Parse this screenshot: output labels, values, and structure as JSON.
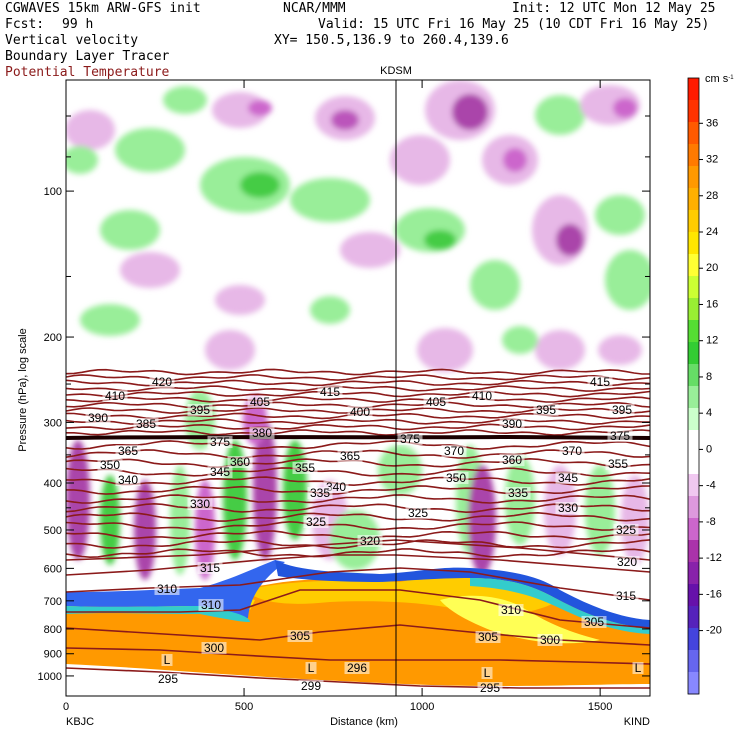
{
  "header": {
    "model": "CGWAVES 15km ARW-GFS init",
    "org": "NCAR/MMM",
    "init": "Init: 12 UTC Mon 12 May 25",
    "fcst_label": "Fcst:",
    "fcst_value": "99 h",
    "valid": "Valid: 15 UTC Fri 16 May 25 (10 CDT Fri 16 May 25)",
    "field1": "Vertical velocity",
    "field2": "Boundary Layer Tracer",
    "field3": "Potential Temperature",
    "xy": "XY= 150.5,136.9 to 260.4,139.6"
  },
  "colors": {
    "theta_contour": "#8b1a1a",
    "terrain": "#ffffff"
  },
  "chart_data": {
    "type": "heatmap",
    "xlabel": "Distance (km)",
    "ylabel": "Pressure (hPa), log scale",
    "x_ticks": [
      "0",
      "500",
      "1000",
      "1500"
    ],
    "x_tick_values": [
      0,
      500,
      1000,
      1500
    ],
    "xlim": [
      0,
      1640
    ],
    "y_ticks": [
      "100",
      "200",
      "300",
      "400",
      "500",
      "600",
      "700",
      "800",
      "900",
      "1000"
    ],
    "y_tick_values": [
      100,
      200,
      300,
      400,
      500,
      600,
      700,
      800,
      900,
      1000
    ],
    "y_scale": "log",
    "station_left": "KBJC",
    "station_right": "KIND",
    "station_mid": "KDSM",
    "station_mid_x": 940,
    "colorbar": {
      "unit": "cm s",
      "unit_exp": "-1",
      "labels": [
        "36",
        "32",
        "28",
        "24",
        "20",
        "16",
        "12",
        "8",
        "4",
        "0",
        "-4",
        "-8",
        "-12",
        "-16",
        "-20"
      ],
      "values": [
        36,
        32,
        28,
        24,
        20,
        16,
        12,
        8,
        4,
        0,
        -4,
        -8,
        -12,
        -16,
        -20
      ],
      "colors": [
        "#ff1a00",
        "#ff3300",
        "#ff5a00",
        "#ff7a00",
        "#ff9900",
        "#ffb000",
        "#ffcc00",
        "#ffe600",
        "#ffff33",
        "#ccff33",
        "#99ee33",
        "#55dd33",
        "#33cc33",
        "#66dd66",
        "#99ee99",
        "#ccffcc",
        "#ffffff",
        "#ffffff",
        "#f0c8f0",
        "#dd99dd",
        "#cc66cc",
        "#aa33aa",
        "#8822aa",
        "#6611aa",
        "#5522bb",
        "#4444dd",
        "#6666ee",
        "#8888ff"
      ]
    },
    "theta_labels": [
      "420",
      "415",
      "415",
      "410",
      "405",
      "405",
      "410",
      "400",
      "395",
      "395",
      "395",
      "390",
      "385",
      "390",
      "375",
      "380",
      "375",
      "375",
      "365",
      "370",
      "370",
      "365",
      "360",
      "360",
      "350",
      "355",
      "355",
      "350",
      "340",
      "345",
      "345",
      "340",
      "335",
      "335",
      "330",
      "330",
      "325",
      "325",
      "325",
      "320",
      "320",
      "315",
      "310",
      "315",
      "310",
      "310",
      "305",
      "305",
      "305",
      "300",
      "300",
      "296",
      "295",
      "299",
      "295",
      "L",
      "L",
      "L",
      "L"
    ]
  }
}
